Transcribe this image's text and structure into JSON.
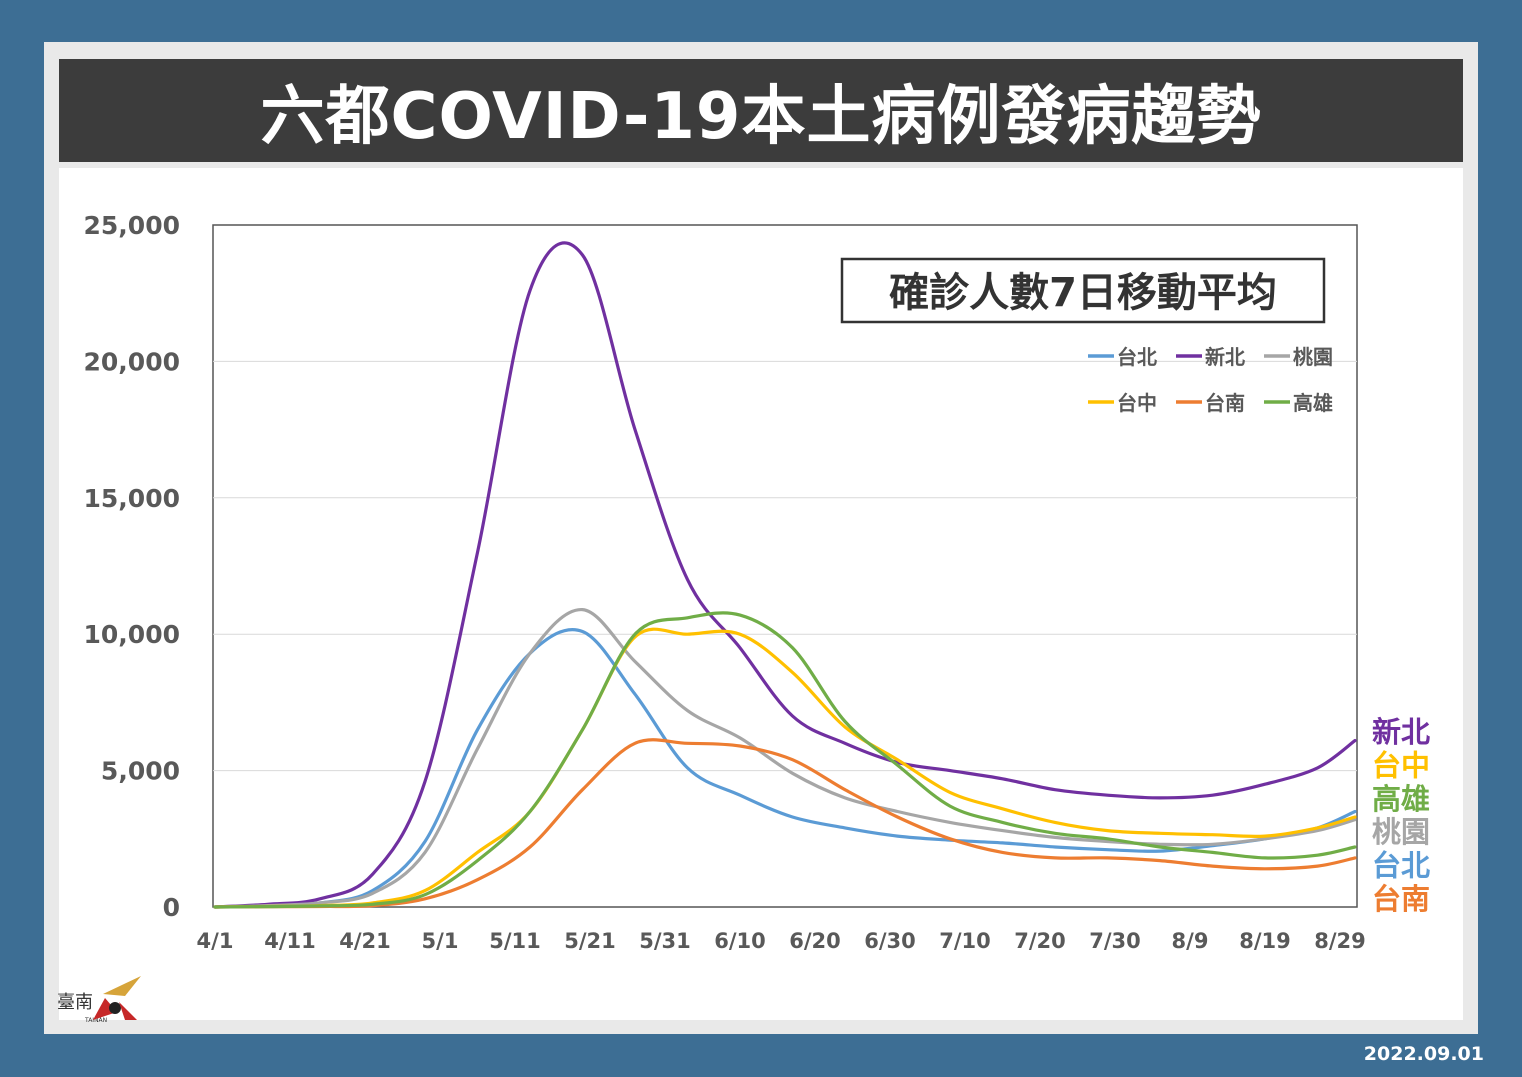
{
  "header": {
    "title": "六都COVID-19本土病例發病趨勢"
  },
  "footer": {
    "date": "2022.09.01"
  },
  "logo": {
    "text": "臺南",
    "subtext": "TAINAN"
  },
  "colors": {
    "台北": "#5b9bd5",
    "新北": "#7030a0",
    "桃園": "#a6a6a6",
    "台中": "#ffc000",
    "台南": "#ed7d31",
    "高雄": "#70ad47"
  },
  "chart_data": {
    "type": "line",
    "title": "確診人數7日移動平均",
    "xlabel": "",
    "ylabel": "",
    "ylim": [
      0,
      25000
    ],
    "yticks": [
      "0",
      "5,000",
      "10,000",
      "15,000",
      "20,000",
      "25,000"
    ],
    "xticks": [
      "4/1",
      "4/11",
      "4/21",
      "5/1",
      "5/11",
      "5/21",
      "5/31",
      "6/10",
      "6/20",
      "6/30",
      "7/10",
      "7/20",
      "7/30",
      "8/9",
      "8/19",
      "8/29"
    ],
    "x": [
      "4/1",
      "4/8",
      "4/15",
      "4/22",
      "4/29",
      "5/6",
      "5/13",
      "5/20",
      "5/27",
      "6/3",
      "6/10",
      "6/17",
      "6/24",
      "7/1",
      "7/8",
      "7/15",
      "7/22",
      "7/29",
      "8/5",
      "8/12",
      "8/19",
      "8/26",
      "8/31"
    ],
    "legend": {
      "placement": "top-right",
      "order": [
        "台北",
        "新北",
        "桃園",
        "台中",
        "台南",
        "高雄"
      ]
    },
    "right_labels": [
      "新北",
      "台中",
      "高雄",
      "桃園",
      "台北",
      "台南"
    ],
    "grid": true,
    "series": [
      {
        "name": "台北",
        "values": [
          0,
          50,
          150,
          600,
          2400,
          6500,
          9300,
          10100,
          7800,
          5100,
          4100,
          3300,
          2900,
          2600,
          2450,
          2350,
          2200,
          2100,
          2050,
          2250,
          2500,
          2900,
          3500
        ]
      },
      {
        "name": "新北",
        "values": [
          0,
          100,
          300,
          1200,
          4600,
          13000,
          22600,
          23900,
          17500,
          12000,
          9500,
          7000,
          6000,
          5300,
          5000,
          4700,
          4300,
          4100,
          4000,
          4100,
          4500,
          5100,
          6100
        ]
      },
      {
        "name": "桃園",
        "values": [
          0,
          50,
          150,
          500,
          2000,
          5800,
          9300,
          10900,
          9000,
          7200,
          6200,
          4900,
          4000,
          3500,
          3100,
          2800,
          2550,
          2400,
          2300,
          2300,
          2500,
          2800,
          3200
        ]
      },
      {
        "name": "台中",
        "values": [
          0,
          20,
          50,
          150,
          600,
          2000,
          3500,
          6500,
          9900,
          10000,
          10000,
          8600,
          6600,
          5400,
          4200,
          3600,
          3100,
          2800,
          2700,
          2650,
          2600,
          2900,
          3300
        ]
      },
      {
        "name": "台南",
        "values": [
          0,
          10,
          20,
          50,
          300,
          1000,
          2200,
          4300,
          6000,
          6000,
          5900,
          5400,
          4300,
          3300,
          2500,
          2000,
          1800,
          1800,
          1700,
          1500,
          1400,
          1500,
          1800
        ]
      },
      {
        "name": "高雄",
        "values": [
          0,
          15,
          40,
          100,
          450,
          1700,
          3500,
          6500,
          10000,
          10600,
          10700,
          9500,
          6800,
          5200,
          3700,
          3100,
          2700,
          2500,
          2200,
          2000,
          1800,
          1900,
          2200
        ]
      }
    ]
  }
}
